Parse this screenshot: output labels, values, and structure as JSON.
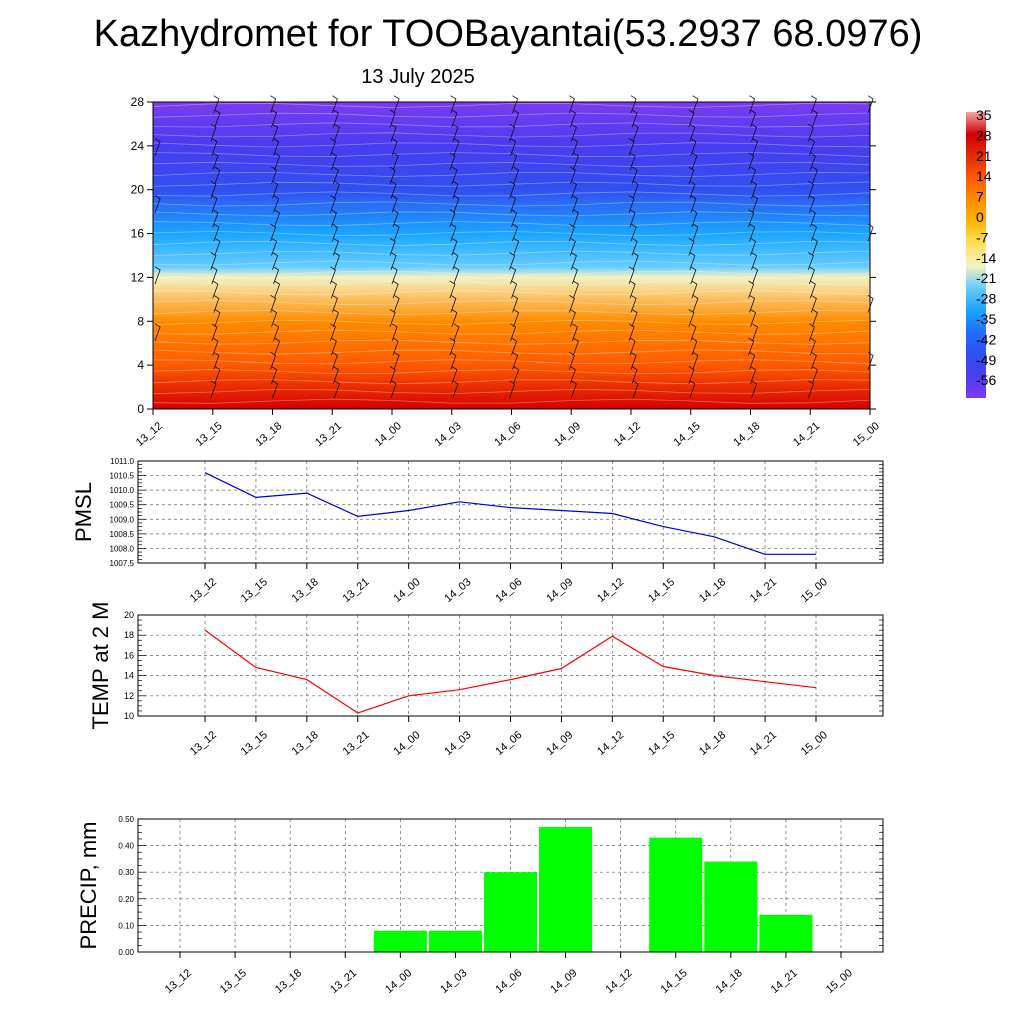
{
  "title": "Kazhydromet for TOOBayantai(53.2937 68.0976)",
  "subtitle": "13 July 2025",
  "time_labels": [
    "13_12",
    "13_15",
    "13_18",
    "13_21",
    "14_00",
    "14_03",
    "14_06",
    "14_09",
    "14_12",
    "14_15",
    "14_18",
    "14_21",
    "15_00"
  ],
  "chart_data": [
    {
      "type": "heatmap",
      "title": "",
      "y_ticks": [
        "0",
        "4",
        "8",
        "12",
        "16",
        "20",
        "24",
        "28"
      ],
      "ylim": [
        0,
        28
      ],
      "colorbar": {
        "labels": [
          "35",
          "28",
          "21",
          "14",
          "7",
          "0",
          "-7",
          "-14",
          "-21",
          "-28",
          "-35",
          "-42",
          "-49",
          "-56"
        ],
        "colors": [
          "#f4a6a6",
          "#d40000",
          "#e52a00",
          "#ff5a00",
          "#ff8c00",
          "#ffb800",
          "#ffe060",
          "#f6f2c0",
          "#66ccff",
          "#1aa6ff",
          "#1f6fff",
          "#3050f0",
          "#4a3cf0",
          "#7b3cf0"
        ]
      },
      "temperature_profile": [
        {
          "level": 0,
          "value": 30
        },
        {
          "level": 4,
          "value": 20
        },
        {
          "level": 8,
          "value": 8
        },
        {
          "level": 12,
          "value": -8
        },
        {
          "level": 13,
          "value": -16
        },
        {
          "level": 16,
          "value": -28
        },
        {
          "level": 20,
          "value": -40
        },
        {
          "level": 24,
          "value": -45
        },
        {
          "level": 28,
          "value": -52
        }
      ],
      "wind_barbs": "yes"
    },
    {
      "type": "line",
      "ylabel": "PMSL",
      "ylim": [
        1007.5,
        1011.0
      ],
      "y_ticks": [
        "1011.0",
        "1010.5",
        "1010.0",
        "1009.5",
        "1009.0",
        "1008.5",
        "1008.0",
        "1007.5"
      ],
      "color": "#0000cc",
      "values": [
        1010.6,
        1009.75,
        1009.9,
        1009.1,
        1009.3,
        1009.6,
        1009.4,
        1009.3,
        1009.2,
        1008.75,
        1008.4,
        1007.8,
        1007.8
      ]
    },
    {
      "type": "line",
      "ylabel": "TEMP at 2 M",
      "ylim": [
        10,
        20
      ],
      "y_ticks": [
        "20",
        "18",
        "16",
        "14",
        "12",
        "10"
      ],
      "color": "#ff0000",
      "values": [
        18.5,
        14.8,
        13.6,
        10.3,
        12.0,
        12.6,
        13.6,
        14.7,
        17.9,
        14.9,
        14.0,
        13.4,
        12.8
      ]
    },
    {
      "type": "bar",
      "ylabel": "PRECIP, mm",
      "ylim": [
        0,
        0.5
      ],
      "y_ticks": [
        "0.50",
        "0.40",
        "0.30",
        "0.20",
        "0.10",
        "0.00"
      ],
      "color": "#00ff00",
      "values": [
        0,
        0,
        0,
        0,
        0.08,
        0.08,
        0.3,
        0.47,
        0,
        0.43,
        0.34,
        0.14,
        0
      ]
    }
  ]
}
